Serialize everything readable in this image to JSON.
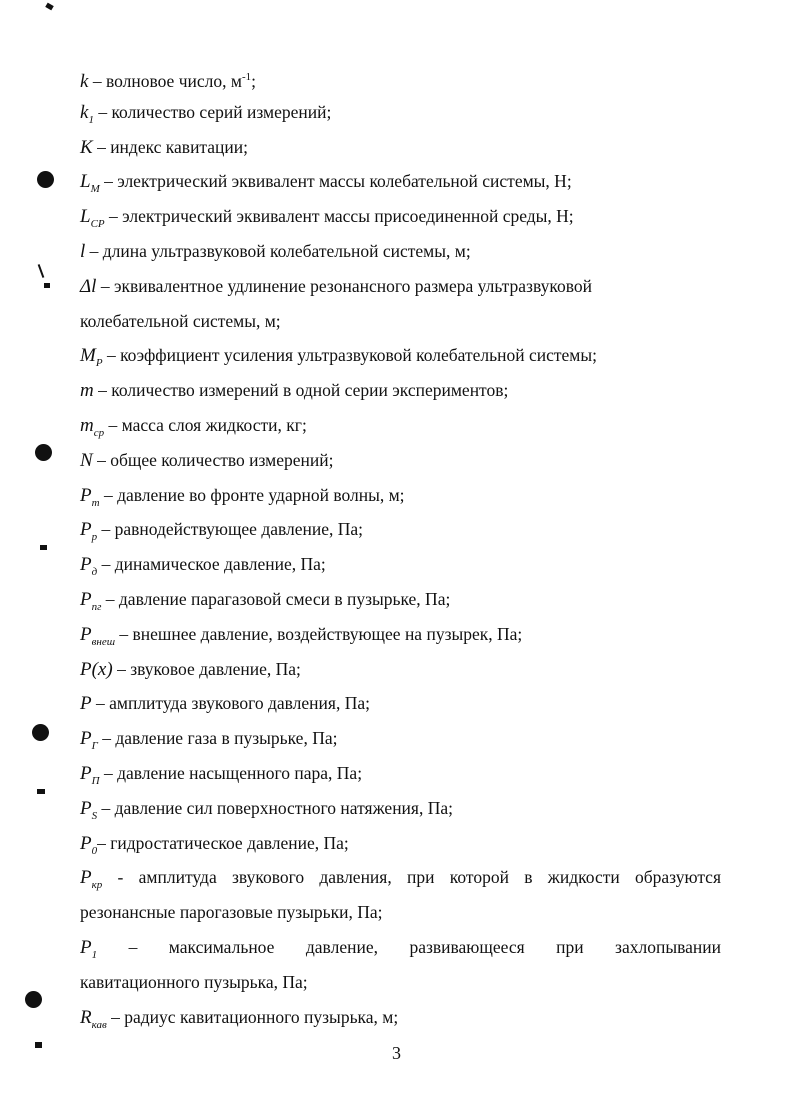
{
  "entries": [
    {
      "sym": "k",
      "sub": "",
      "sup": "",
      "text": " – волновое число, м",
      "after_sup": "-1",
      "tail": ";"
    },
    {
      "sym": "k",
      "sub": "1",
      "text": " – количество серий измерений;"
    },
    {
      "sym": "K",
      "sub": "",
      "text": "  – индекс кавитации;"
    },
    {
      "sym": "L",
      "sub": "M",
      "text": " – электрический эквивалент массы колебательной системы, Н;"
    },
    {
      "sym": "L",
      "sub": "CP",
      "text": " – электрический эквивалент массы присоединенной среды, Н;"
    },
    {
      "sym": "l",
      "sub": "",
      "text": " – длина ультразвуковой колебательной системы, м;"
    },
    {
      "sym": "Δl",
      "sub": "",
      "text": "  – эквивалентное удлинение резонансного размера ультразвуковой"
    },
    {
      "sym": "",
      "sub": "",
      "text": "колебательной системы, м;"
    },
    {
      "sym": "M",
      "sub": "P",
      "text": " – коэффициент усиления ультразвуковой колебательной системы;"
    },
    {
      "sym": "m",
      "sub": "",
      "text": "  – количество измерений в одной серии экспериментов;"
    },
    {
      "sym": "m",
      "sub": "ср",
      "text": " – масса слоя жидкости, кг;"
    },
    {
      "sym": "N",
      "sub": "",
      "text": "  – общее количество измерений;"
    },
    {
      "sym": "P",
      "sub": "m",
      "text": " – давление во фронте ударной волны, м;"
    },
    {
      "sym": "P",
      "sub": "p",
      "text": " – равнодействующее давление, Па;"
    },
    {
      "sym": "P",
      "sub": "д",
      "text": " – динамическое давление, Па;"
    },
    {
      "sym": "P",
      "sub": "пг",
      "text": " – давление парагазовой смеси в пузырьке, Па;"
    },
    {
      "sym": "P",
      "sub": "внеш",
      "text": " – внешнее давление, воздействующее на пузырек, Па;"
    },
    {
      "sym": "P(x)",
      "sub": "",
      "text": " – звуковое давление, Па;"
    },
    {
      "sym": "P",
      "sub": "",
      "text": "  – амплитуда звукового давления, Па;"
    },
    {
      "sym": "P",
      "sub": "Г",
      "text": " – давление газа в пузырьке, Па;"
    },
    {
      "sym": "P",
      "sub": "П",
      "text": " – давление насыщенного пара, Па;"
    },
    {
      "sym": "P",
      "sub": "S",
      "text": " – давление сил поверхностного натяжения, Па;"
    },
    {
      "sym": "P",
      "sub": "0",
      "text": "– гидростатическое давление, Па;"
    },
    {
      "sym": "P",
      "sub": "кр",
      "text": " - амплитуда звукового давления, при которой в жидкости образуются",
      "justify": true
    },
    {
      "sym": "",
      "sub": "",
      "text": "резонансные парогазовые пузырьки, Па;"
    },
    {
      "sym": "P",
      "sub": "1",
      "text": " – максимальное давление, развивающееся при захлопывании",
      "justify": true
    },
    {
      "sym": "",
      "sub": "",
      "text": "кавитационного пузырька, Па;"
    },
    {
      "sym": "R",
      "sub": "кав",
      "text": " – радиус кавитационного пузырька, м;"
    }
  ],
  "page_number": "3"
}
